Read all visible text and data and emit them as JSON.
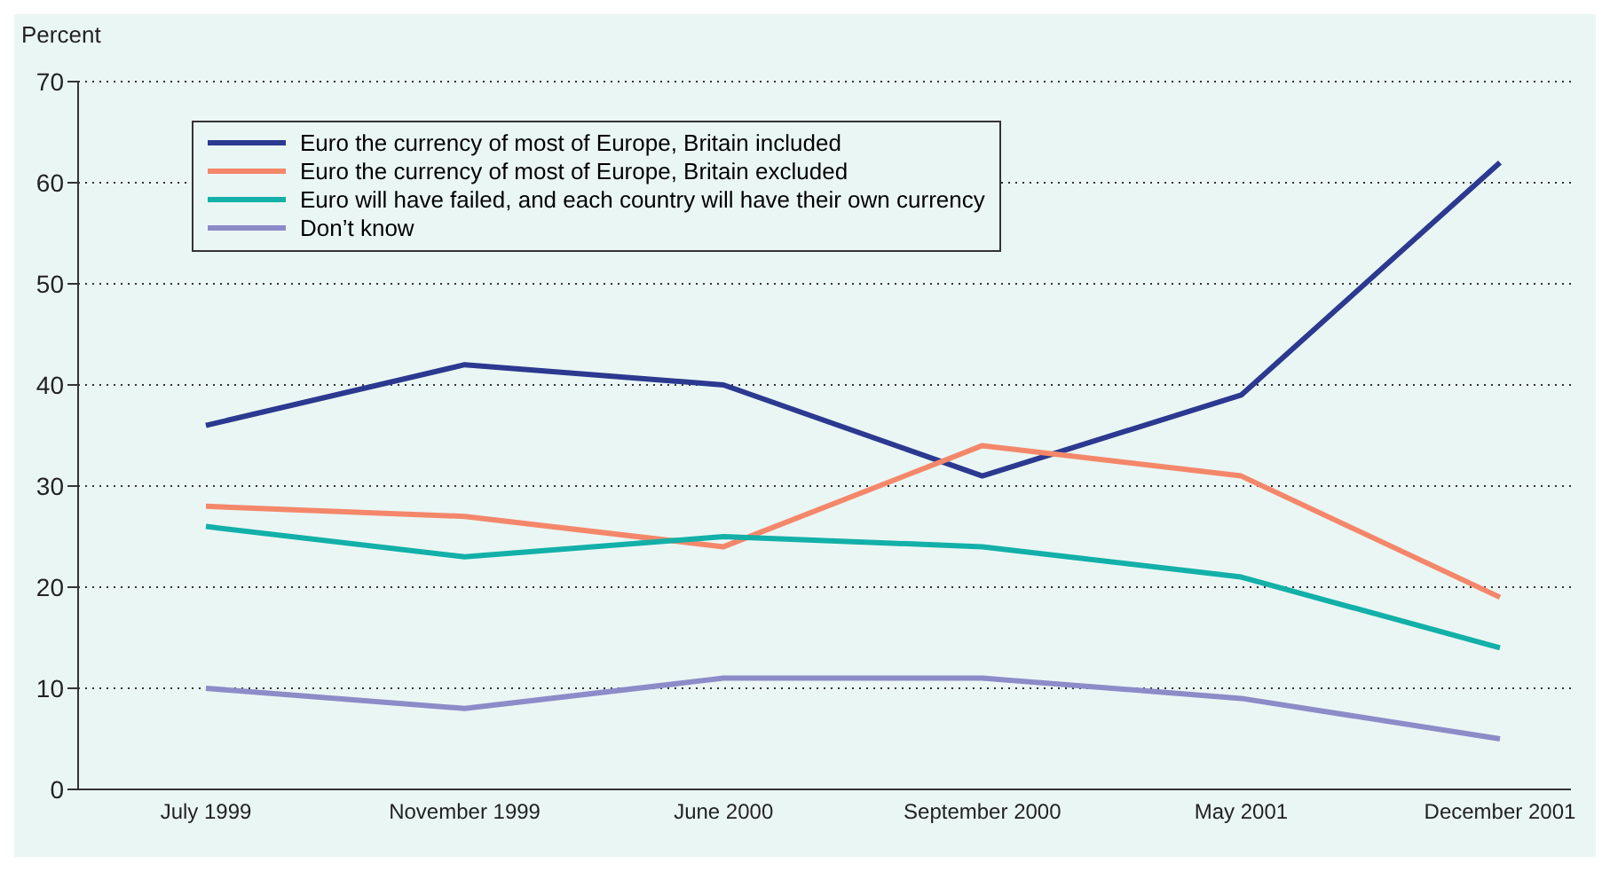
{
  "chart_data": {
    "type": "line",
    "ylabel": "Percent",
    "categories": [
      "July 1999",
      "November 1999",
      "June 2000",
      "September 2000",
      "May 2001",
      "December 2001"
    ],
    "series": [
      {
        "name": "Euro the currency of most of Europe, Britain included",
        "color": "#2b3990",
        "values": [
          36,
          42,
          40,
          31,
          39,
          62
        ]
      },
      {
        "name": "Euro the currency of most of Europe, Britain excluded",
        "color": "#f4876a",
        "values": [
          28,
          27,
          24,
          34,
          31,
          19
        ]
      },
      {
        "name": "Euro will have failed, and each country will have their own currency",
        "color": "#12b0a8",
        "values": [
          26,
          23,
          25,
          24,
          21,
          14
        ]
      },
      {
        "name": "Don’t know",
        "color": "#8c8cc8",
        "values": [
          10,
          8,
          11,
          11,
          9,
          5
        ]
      }
    ],
    "ylim": [
      0,
      70
    ],
    "yticks": [
      0,
      10,
      20,
      30,
      40,
      50,
      60,
      70
    ],
    "grid": "y",
    "legend": "top left",
    "marker": "none",
    "line_style": "solid"
  }
}
